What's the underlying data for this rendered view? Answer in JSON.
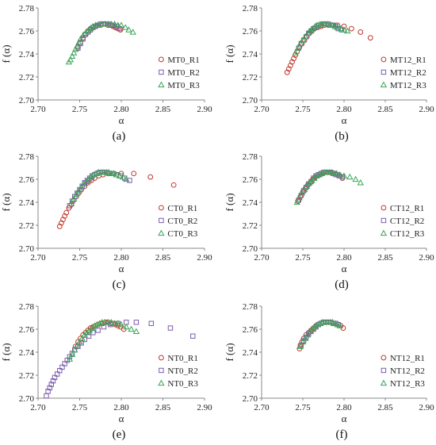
{
  "colors": {
    "R1": "#c0392b",
    "R2": "#7b5cae",
    "R3": "#3aa656",
    "axis": "#888888"
  },
  "chart_data": [
    {
      "type": "scatter",
      "panel_label": "(a)",
      "xlabel": "α",
      "ylabel": "f (α)",
      "xlim": [
        2.7,
        2.9
      ],
      "ylim": [
        2.7,
        2.78
      ],
      "xticks": [
        "2.70",
        "2.75",
        "2.80",
        "2.85",
        "2.90"
      ],
      "yticks": [
        "2.70",
        "2.72",
        "2.74",
        "2.76",
        "2.78"
      ],
      "series": [
        {
          "name": "MT0_R1",
          "marker": "circle",
          "x": [
            2.748,
            2.751,
            2.754,
            2.757,
            2.76,
            2.763,
            2.766,
            2.769,
            2.772,
            2.775,
            2.778,
            2.781,
            2.784,
            2.787,
            2.79,
            2.793,
            2.796,
            2.799
          ],
          "y": [
            2.746,
            2.75,
            2.754,
            2.757,
            2.76,
            2.762,
            2.763,
            2.764,
            2.765,
            2.765,
            2.766,
            2.766,
            2.765,
            2.765,
            2.764,
            2.763,
            2.762,
            2.761
          ]
        },
        {
          "name": "MT0_R2",
          "marker": "square",
          "x": [
            2.748,
            2.751,
            2.754,
            2.757,
            2.76,
            2.763,
            2.766,
            2.769,
            2.772,
            2.775,
            2.778,
            2.781,
            2.784,
            2.787,
            2.79,
            2.794,
            2.798
          ],
          "y": [
            2.745,
            2.749,
            2.753,
            2.757,
            2.759,
            2.761,
            2.763,
            2.764,
            2.765,
            2.766,
            2.766,
            2.766,
            2.766,
            2.765,
            2.765,
            2.764,
            2.762
          ]
        },
        {
          "name": "MT0_R3",
          "marker": "triangle",
          "x": [
            2.737,
            2.739,
            2.741,
            2.743,
            2.745,
            2.747,
            2.749,
            2.751,
            2.754,
            2.757,
            2.76,
            2.763,
            2.766,
            2.769,
            2.772,
            2.776,
            2.78,
            2.784,
            2.788,
            2.792,
            2.796,
            2.8,
            2.805,
            2.809,
            2.814
          ],
          "y": [
            2.733,
            2.735,
            2.738,
            2.741,
            2.744,
            2.747,
            2.75,
            2.753,
            2.756,
            2.758,
            2.76,
            2.762,
            2.764,
            2.765,
            2.765,
            2.766,
            2.766,
            2.766,
            2.766,
            2.766,
            2.765,
            2.765,
            2.763,
            2.761,
            2.759
          ]
        }
      ]
    },
    {
      "type": "scatter",
      "panel_label": "(b)",
      "xlabel": "α",
      "ylabel": "f (α)",
      "xlim": [
        2.7,
        2.9
      ],
      "ylim": [
        2.7,
        2.78
      ],
      "xticks": [
        "2.70",
        "2.75",
        "2.80",
        "2.85",
        "2.90"
      ],
      "yticks": [
        "2.70",
        "2.72",
        "2.74",
        "2.76",
        "2.78"
      ],
      "series": [
        {
          "name": "MT12_R1",
          "marker": "circle",
          "x": [
            2.731,
            2.733,
            2.735,
            2.737,
            2.739,
            2.741,
            2.743,
            2.746,
            2.749,
            2.752,
            2.755,
            2.758,
            2.761,
            2.764,
            2.768,
            2.772,
            2.776,
            2.781,
            2.786,
            2.792,
            2.8,
            2.809,
            2.82,
            2.832
          ],
          "y": [
            2.724,
            2.727,
            2.73,
            2.733,
            2.736,
            2.739,
            2.742,
            2.746,
            2.749,
            2.752,
            2.755,
            2.758,
            2.76,
            2.762,
            2.763,
            2.764,
            2.765,
            2.765,
            2.765,
            2.765,
            2.764,
            2.762,
            2.759,
            2.754
          ]
        },
        {
          "name": "MT12_R2",
          "marker": "square",
          "x": [
            2.745,
            2.748,
            2.751,
            2.754,
            2.757,
            2.76,
            2.763,
            2.766,
            2.769,
            2.772,
            2.775,
            2.778,
            2.781,
            2.784,
            2.787,
            2.79,
            2.793,
            2.797
          ],
          "y": [
            2.745,
            2.749,
            2.752,
            2.755,
            2.758,
            2.76,
            2.762,
            2.763,
            2.765,
            2.765,
            2.766,
            2.766,
            2.766,
            2.765,
            2.765,
            2.764,
            2.762,
            2.761
          ]
        },
        {
          "name": "MT12_R3",
          "marker": "triangle",
          "x": [
            2.741,
            2.744,
            2.747,
            2.75,
            2.753,
            2.756,
            2.759,
            2.762,
            2.765,
            2.768,
            2.771,
            2.774,
            2.777,
            2.78,
            2.783,
            2.786,
            2.789,
            2.792,
            2.796,
            2.8,
            2.804
          ],
          "y": [
            2.741,
            2.745,
            2.749,
            2.752,
            2.755,
            2.758,
            2.76,
            2.762,
            2.764,
            2.765,
            2.766,
            2.766,
            2.766,
            2.766,
            2.765,
            2.765,
            2.764,
            2.763,
            2.762,
            2.761,
            2.76
          ]
        }
      ]
    },
    {
      "type": "scatter",
      "panel_label": "(c)",
      "xlabel": "α",
      "ylabel": "f (α)",
      "xlim": [
        2.7,
        2.9
      ],
      "ylim": [
        2.7,
        2.78
      ],
      "xticks": [
        "2.70",
        "2.75",
        "2.80",
        "2.85",
        "2.90"
      ],
      "yticks": [
        "2.70",
        "2.72",
        "2.74",
        "2.76",
        "2.78"
      ],
      "series": [
        {
          "name": "CT0_R1",
          "marker": "circle",
          "x": [
            2.726,
            2.728,
            2.73,
            2.732,
            2.734,
            2.737,
            2.74,
            2.743,
            2.746,
            2.749,
            2.752,
            2.756,
            2.76,
            2.764,
            2.768,
            2.773,
            2.778,
            2.784,
            2.791,
            2.8,
            2.815,
            2.835,
            2.863
          ],
          "y": [
            2.719,
            2.722,
            2.725,
            2.728,
            2.731,
            2.735,
            2.738,
            2.742,
            2.745,
            2.748,
            2.751,
            2.754,
            2.757,
            2.759,
            2.761,
            2.763,
            2.764,
            2.765,
            2.765,
            2.765,
            2.765,
            2.762,
            2.755
          ]
        },
        {
          "name": "CT0_R2",
          "marker": "square",
          "x": [
            2.738,
            2.741,
            2.744,
            2.747,
            2.75,
            2.753,
            2.756,
            2.759,
            2.762,
            2.765,
            2.768,
            2.771,
            2.774,
            2.777,
            2.78,
            2.783,
            2.786,
            2.79,
            2.794,
            2.799,
            2.804,
            2.81
          ],
          "y": [
            2.737,
            2.741,
            2.745,
            2.748,
            2.751,
            2.754,
            2.757,
            2.759,
            2.761,
            2.763,
            2.764,
            2.765,
            2.766,
            2.766,
            2.766,
            2.766,
            2.765,
            2.765,
            2.764,
            2.763,
            2.761,
            2.759
          ]
        },
        {
          "name": "CT0_R3",
          "marker": "triangle",
          "x": [
            2.74,
            2.743,
            2.746,
            2.749,
            2.752,
            2.755,
            2.758,
            2.761,
            2.764,
            2.767,
            2.77,
            2.773,
            2.776,
            2.779,
            2.782,
            2.785,
            2.788,
            2.791,
            2.794,
            2.798,
            2.802,
            2.806
          ],
          "y": [
            2.739,
            2.743,
            2.747,
            2.75,
            2.753,
            2.756,
            2.758,
            2.76,
            2.762,
            2.764,
            2.765,
            2.766,
            2.766,
            2.766,
            2.766,
            2.766,
            2.765,
            2.765,
            2.764,
            2.763,
            2.762,
            2.76
          ]
        }
      ]
    },
    {
      "type": "scatter",
      "panel_label": "(d)",
      "xlabel": "α",
      "ylabel": "f (α)",
      "xlim": [
        2.7,
        2.9
      ],
      "ylim": [
        2.7,
        2.78
      ],
      "xticks": [
        "2.70",
        "2.75",
        "2.80",
        "2.85",
        "2.90"
      ],
      "yticks": [
        "2.70",
        "2.72",
        "2.74",
        "2.76",
        "2.78"
      ],
      "series": [
        {
          "name": "CT12_R1",
          "marker": "circle",
          "x": [
            2.744,
            2.747,
            2.75,
            2.753,
            2.756,
            2.759,
            2.762,
            2.765,
            2.768,
            2.771,
            2.774,
            2.777,
            2.78,
            2.783,
            2.786,
            2.789,
            2.792,
            2.795,
            2.798
          ],
          "y": [
            2.741,
            2.745,
            2.749,
            2.752,
            2.755,
            2.757,
            2.76,
            2.762,
            2.763,
            2.764,
            2.765,
            2.766,
            2.766,
            2.766,
            2.765,
            2.765,
            2.764,
            2.763,
            2.761
          ]
        },
        {
          "name": "CT12_R2",
          "marker": "square",
          "x": [
            2.745,
            2.748,
            2.751,
            2.754,
            2.757,
            2.76,
            2.763,
            2.766,
            2.769,
            2.772,
            2.775,
            2.778,
            2.781,
            2.784,
            2.787,
            2.79,
            2.794,
            2.798
          ],
          "y": [
            2.742,
            2.746,
            2.75,
            2.753,
            2.756,
            2.758,
            2.761,
            2.763,
            2.764,
            2.765,
            2.766,
            2.766,
            2.766,
            2.766,
            2.765,
            2.764,
            2.763,
            2.762
          ]
        },
        {
          "name": "CT12_R3",
          "marker": "triangle",
          "x": [
            2.743,
            2.746,
            2.749,
            2.752,
            2.755,
            2.758,
            2.761,
            2.764,
            2.767,
            2.77,
            2.773,
            2.776,
            2.779,
            2.782,
            2.785,
            2.788,
            2.791,
            2.795,
            2.8,
            2.807,
            2.814,
            2.82
          ],
          "y": [
            2.74,
            2.744,
            2.748,
            2.751,
            2.754,
            2.757,
            2.759,
            2.761,
            2.763,
            2.764,
            2.765,
            2.766,
            2.766,
            2.766,
            2.766,
            2.765,
            2.765,
            2.764,
            2.763,
            2.762,
            2.76,
            2.757
          ]
        }
      ]
    },
    {
      "type": "scatter",
      "panel_label": "(e)",
      "xlabel": "α",
      "ylabel": "f (α)",
      "xlim": [
        2.7,
        2.9
      ],
      "ylim": [
        2.7,
        2.78
      ],
      "xticks": [
        "2.70",
        "2.75",
        "2.80",
        "2.85",
        "2.90"
      ],
      "yticks": [
        "2.70",
        "2.72",
        "2.74",
        "2.76",
        "2.78"
      ],
      "series": [
        {
          "name": "NT0_R1",
          "marker": "circle",
          "x": [
            2.745,
            2.748,
            2.751,
            2.754,
            2.757,
            2.76,
            2.763,
            2.766,
            2.769,
            2.772,
            2.775,
            2.778,
            2.781,
            2.784,
            2.787,
            2.79,
            2.793,
            2.796,
            2.799,
            2.803
          ],
          "y": [
            2.745,
            2.749,
            2.752,
            2.755,
            2.757,
            2.759,
            2.761,
            2.762,
            2.763,
            2.764,
            2.765,
            2.765,
            2.766,
            2.766,
            2.765,
            2.765,
            2.764,
            2.763,
            2.762,
            2.76
          ]
        },
        {
          "name": "NT0_R2",
          "marker": "square",
          "x": [
            2.71,
            2.712,
            2.714,
            2.716,
            2.718,
            2.72,
            2.723,
            2.726,
            2.729,
            2.732,
            2.735,
            2.738,
            2.741,
            2.744,
            2.748,
            2.752,
            2.756,
            2.761,
            2.766,
            2.772,
            2.779,
            2.787,
            2.796,
            2.806,
            2.818,
            2.836,
            2.859,
            2.886
          ],
          "y": [
            2.702,
            2.706,
            2.709,
            2.712,
            2.715,
            2.718,
            2.721,
            2.724,
            2.727,
            2.73,
            2.733,
            2.736,
            2.739,
            2.742,
            2.745,
            2.748,
            2.751,
            2.754,
            2.757,
            2.759,
            2.762,
            2.764,
            2.765,
            2.766,
            2.766,
            2.765,
            2.761,
            2.754
          ]
        },
        {
          "name": "NT0_R3",
          "marker": "triangle",
          "x": [
            2.738,
            2.741,
            2.744,
            2.747,
            2.75,
            2.753,
            2.756,
            2.759,
            2.762,
            2.765,
            2.768,
            2.771,
            2.774,
            2.777,
            2.78,
            2.784,
            2.788,
            2.792,
            2.796,
            2.8,
            2.806,
            2.812,
            2.818
          ],
          "y": [
            2.734,
            2.738,
            2.742,
            2.746,
            2.749,
            2.752,
            2.755,
            2.757,
            2.759,
            2.761,
            2.763,
            2.764,
            2.765,
            2.766,
            2.766,
            2.766,
            2.766,
            2.765,
            2.765,
            2.764,
            2.762,
            2.76,
            2.758
          ]
        }
      ]
    },
    {
      "type": "scatter",
      "panel_label": "(f)",
      "xlabel": "α",
      "ylabel": "f (α)",
      "xlim": [
        2.7,
        2.9
      ],
      "ylim": [
        2.7,
        2.78
      ],
      "xticks": [
        "2.70",
        "2.75",
        "2.80",
        "2.85",
        "2.90"
      ],
      "yticks": [
        "2.70",
        "2.72",
        "2.74",
        "2.76",
        "2.78"
      ],
      "series": [
        {
          "name": "NT12_R1",
          "marker": "circle",
          "x": [
            2.746,
            2.747,
            2.749,
            2.751,
            2.754,
            2.757,
            2.76,
            2.763,
            2.766,
            2.769,
            2.772,
            2.775,
            2.778,
            2.781,
            2.784,
            2.787,
            2.79,
            2.793,
            2.796,
            2.799
          ],
          "y": [
            2.743,
            2.746,
            2.749,
            2.752,
            2.755,
            2.757,
            2.759,
            2.761,
            2.763,
            2.764,
            2.765,
            2.766,
            2.766,
            2.766,
            2.766,
            2.765,
            2.765,
            2.764,
            2.763,
            2.761
          ]
        },
        {
          "name": "NT12_R2",
          "marker": "square",
          "x": [
            2.748,
            2.751,
            2.754,
            2.757,
            2.76,
            2.763,
            2.766,
            2.769,
            2.772,
            2.775,
            2.778,
            2.781,
            2.784,
            2.787,
            2.79,
            2.793
          ],
          "y": [
            2.746,
            2.75,
            2.753,
            2.756,
            2.758,
            2.76,
            2.762,
            2.764,
            2.765,
            2.766,
            2.766,
            2.766,
            2.766,
            2.765,
            2.765,
            2.764
          ]
        },
        {
          "name": "NT12_R3",
          "marker": "triangle",
          "x": [
            2.747,
            2.75,
            2.753,
            2.756,
            2.759,
            2.762,
            2.765,
            2.768,
            2.771,
            2.774,
            2.777,
            2.78,
            2.783,
            2.786,
            2.789,
            2.792,
            2.795
          ],
          "y": [
            2.745,
            2.749,
            2.752,
            2.755,
            2.758,
            2.76,
            2.762,
            2.764,
            2.765,
            2.766,
            2.766,
            2.766,
            2.766,
            2.766,
            2.765,
            2.764,
            2.763
          ]
        }
      ]
    }
  ]
}
